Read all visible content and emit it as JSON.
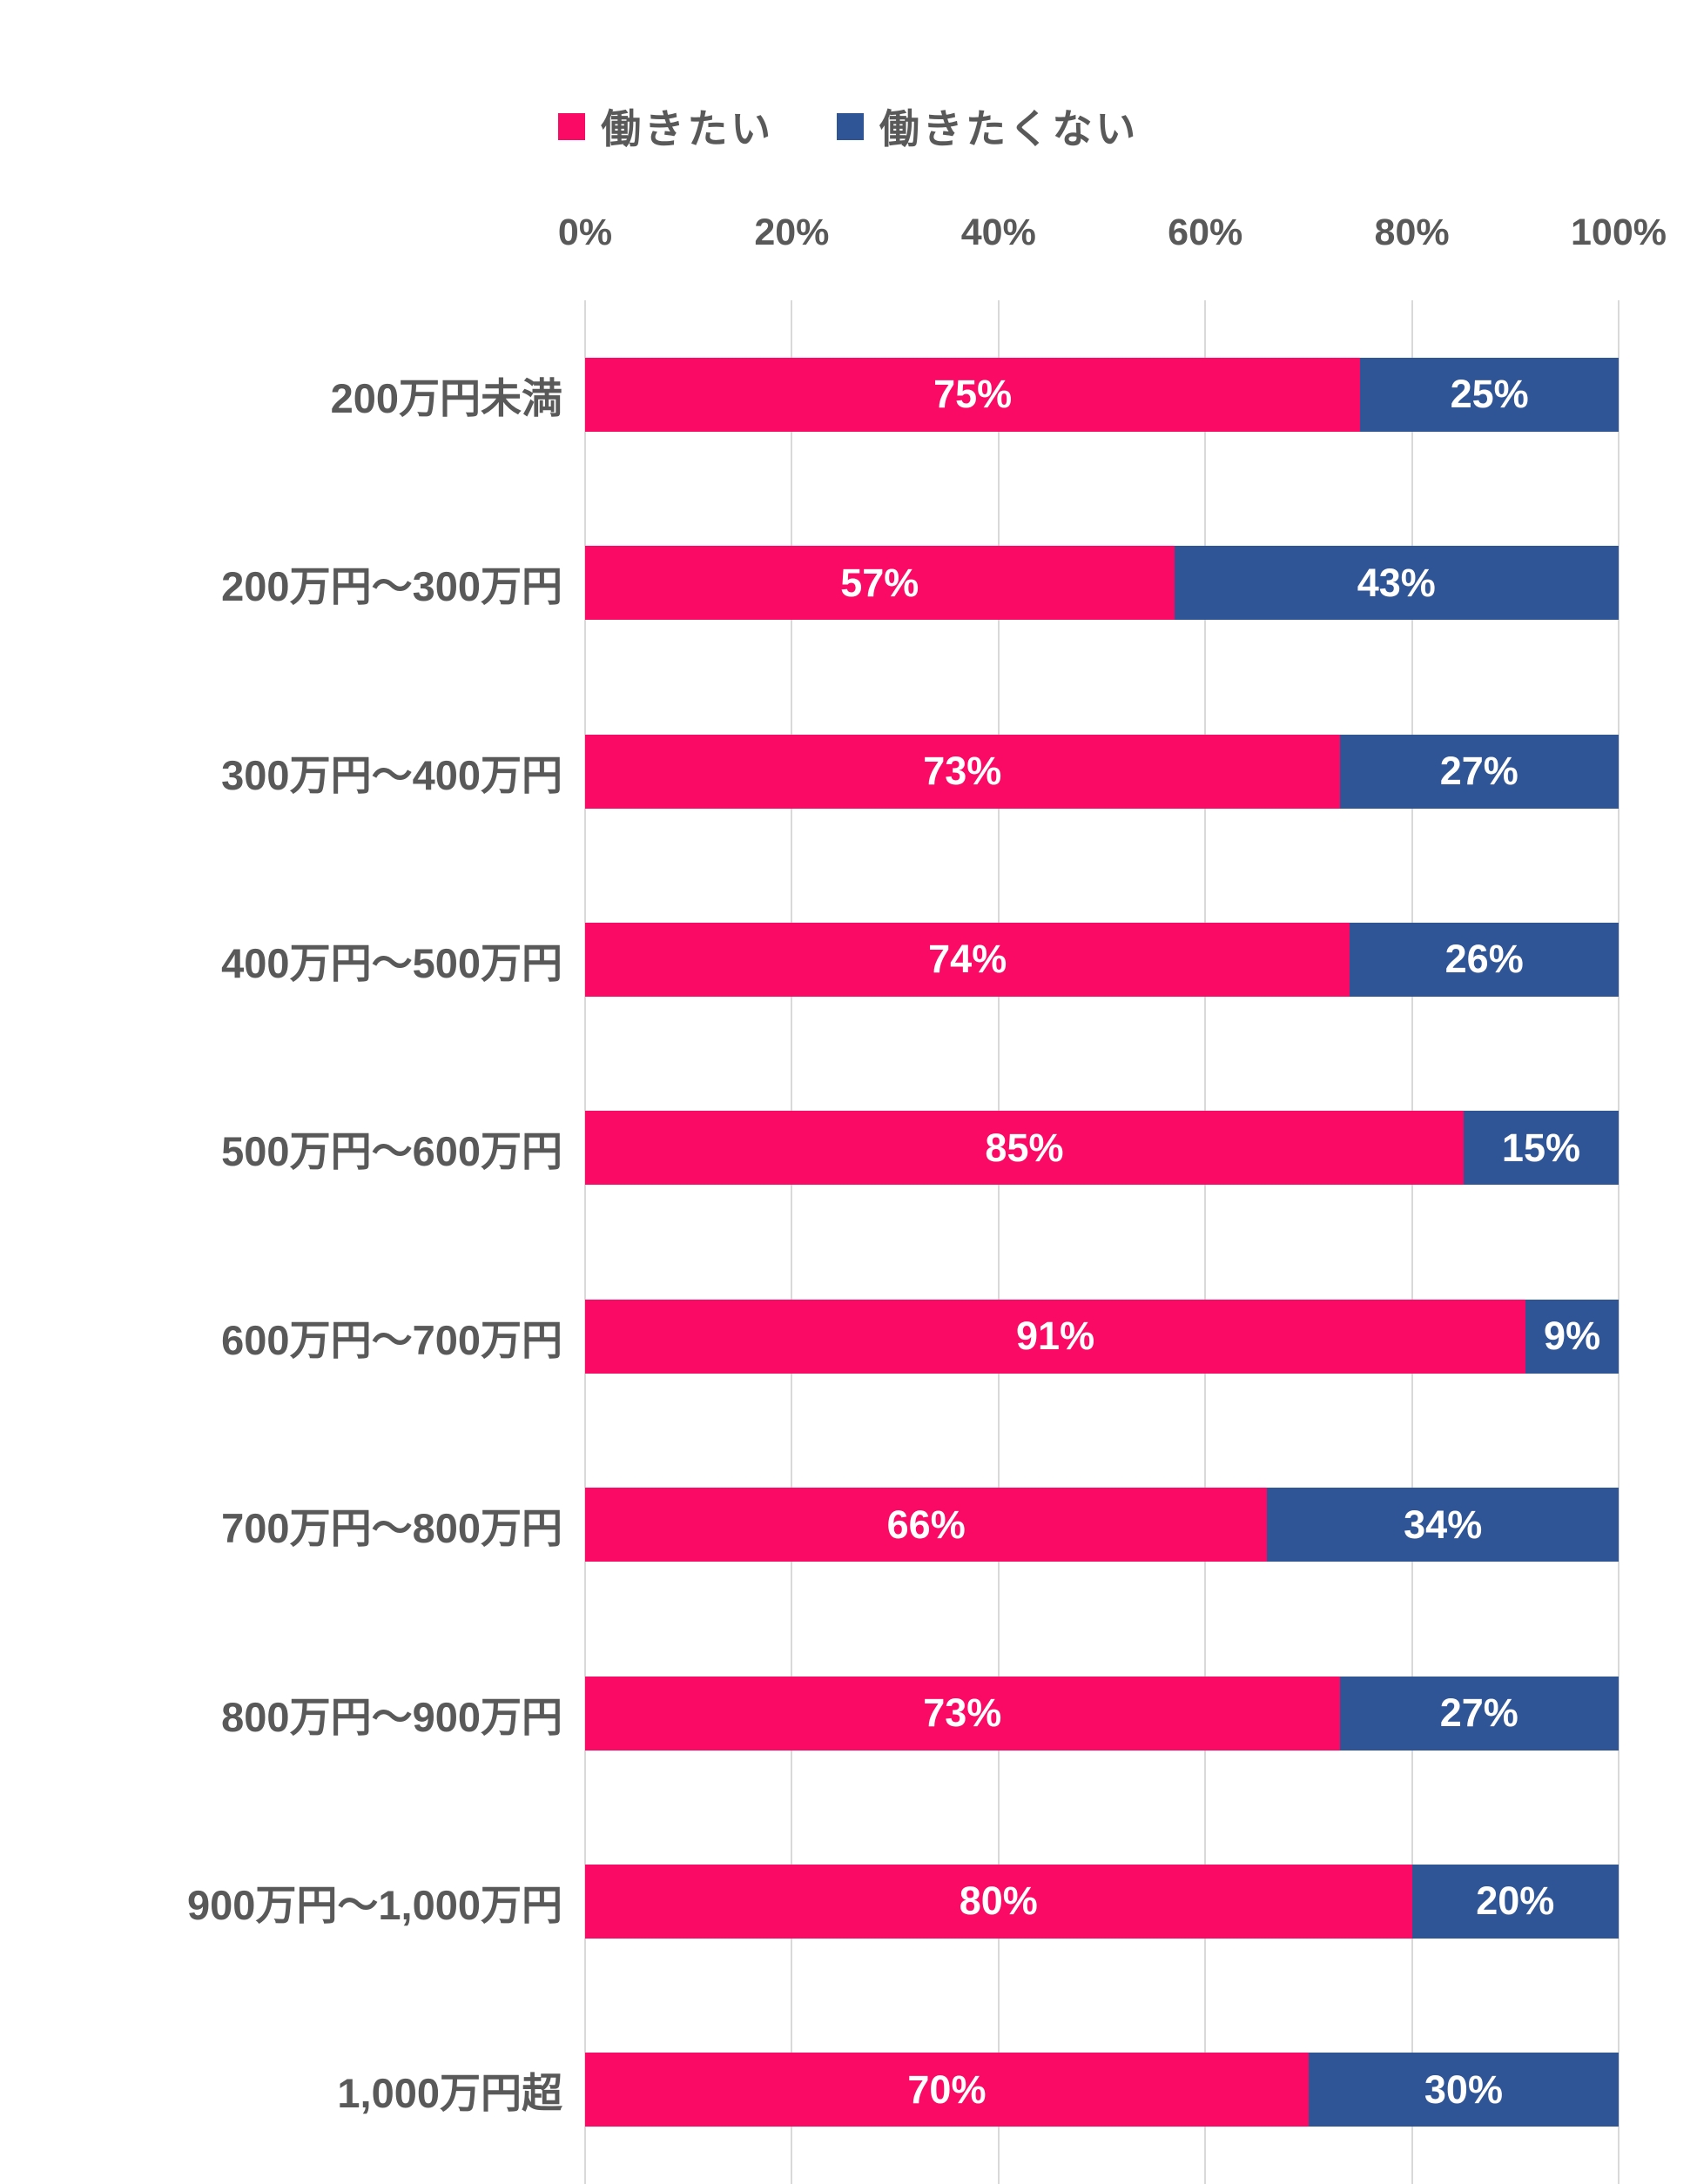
{
  "legend": {
    "items": [
      {
        "label": "働きたい",
        "color": "#FA0A64"
      },
      {
        "label": "働きたくない",
        "color": "#2F5597"
      }
    ]
  },
  "chart_data": {
    "type": "bar",
    "orientation": "horizontal",
    "stacked": true,
    "title": "",
    "xlabel": "",
    "ylabel": "",
    "xlim": [
      0,
      100
    ],
    "x_ticks": [
      "0%",
      "20%",
      "40%",
      "60%",
      "80%",
      "100%"
    ],
    "grid": "vertical",
    "legend_position": "top",
    "value_suffix": "%",
    "categories": [
      "200万円未満",
      "200万円〜300万円",
      "300万円〜400万円",
      "400万円〜500万円",
      "500万円〜600万円",
      "600万円〜700万円",
      "700万円〜800万円",
      "800万円〜900万円",
      "900万円〜1,000万円",
      "1,000万円超"
    ],
    "series": [
      {
        "name": "働きたい",
        "color": "#FA0A64",
        "values": [
          75,
          57,
          73,
          74,
          85,
          91,
          66,
          73,
          80,
          70
        ]
      },
      {
        "name": "働きたくない",
        "color": "#2F5597",
        "values": [
          25,
          43,
          27,
          26,
          15,
          9,
          34,
          27,
          20,
          30
        ]
      }
    ]
  },
  "colors": {
    "pink": "#FA0A64",
    "blue": "#2F5597",
    "label_gray": "#595959",
    "gridline": "#D9D9D9",
    "data_label": "#FFFFFF",
    "background": "#FFFFFF"
  }
}
